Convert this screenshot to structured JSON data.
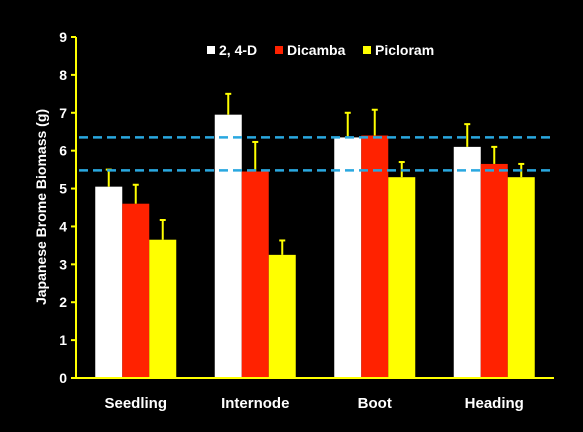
{
  "chart_data": {
    "type": "bar",
    "title": "",
    "xlabel": "",
    "ylabel": "Japanese Brome Biomass (g)",
    "ylim": [
      0,
      9
    ],
    "yticks": [
      "0",
      "1",
      "2",
      "3",
      "4",
      "5",
      "6",
      "7",
      "8",
      "9"
    ],
    "categories": [
      "Seedling",
      "Internode",
      "Boot",
      "Heading"
    ],
    "series": [
      {
        "name": "2, 4-D",
        "color": "#ffffff",
        "values": [
          5.05,
          6.95,
          6.35,
          6.1
        ],
        "errors": [
          0.45,
          0.55,
          0.65,
          0.6
        ]
      },
      {
        "name": "Dicamba",
        "color": "#ff2200",
        "values": [
          4.6,
          5.45,
          6.4,
          5.65
        ],
        "errors": [
          0.5,
          0.78,
          0.68,
          0.45
        ]
      },
      {
        "name": "Picloram",
        "color": "#ffff00",
        "values": [
          3.65,
          3.25,
          5.3,
          5.3
        ],
        "errors": [
          0.52,
          0.38,
          0.4,
          0.35
        ]
      }
    ],
    "reference_lines": [
      6.35,
      5.48
    ],
    "reference_line_color": "#29a8e0",
    "legend_position": "top-center",
    "grid": false,
    "background": "#000000",
    "axis_color": "#ffff00"
  }
}
